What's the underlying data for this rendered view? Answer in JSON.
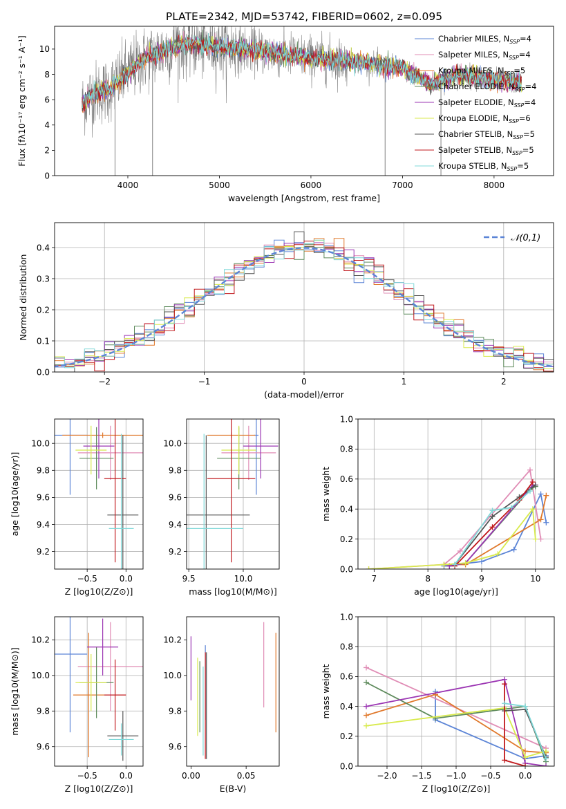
{
  "figure": {
    "title": "PLATE=2342, MJD=53742, FIBERID=0602, z=0.095"
  },
  "series_styles": [
    {
      "name": "Chabrier MILES",
      "nssp": "4",
      "color": "#5b84d6"
    },
    {
      "name": "Salpeter MILES",
      "nssp": "4",
      "color": "#e08cb5"
    },
    {
      "name": "Kroupa MILES",
      "nssp": "5",
      "color": "#e0782b"
    },
    {
      "name": "Chabrier ELODIE",
      "nssp": "4",
      "color": "#5d8a5b"
    },
    {
      "name": "Salpeter ELODIE",
      "nssp": "4",
      "color": "#9b35b3"
    },
    {
      "name": "Kroupa ELODIE",
      "nssp": "6",
      "color": "#d8ea4c"
    },
    {
      "name": "Chabrier STELIB",
      "nssp": "5",
      "color": "#555555"
    },
    {
      "name": "Salpeter STELIB",
      "nssp": "5",
      "color": "#c0181c"
    },
    {
      "name": "Kroupa STELIB",
      "nssp": "5",
      "color": "#7fd8d8"
    }
  ],
  "chart_data": [
    {
      "id": "spectrum",
      "type": "line",
      "xlabel": "wavelength [Angstrom, rest frame]",
      "ylabel": "Flux [fλ10⁻¹⁷ erg cm⁻² s⁻¹ A⁻¹]",
      "xlim": [
        3200,
        8650
      ],
      "ylim": [
        0,
        11.8
      ],
      "xticks": [
        4000,
        5000,
        6000,
        7000,
        8000
      ],
      "yticks": [
        0,
        2,
        4,
        6,
        8,
        10
      ],
      "grid": false,
      "legend": "top-right",
      "data_color": "#808080",
      "model_color": "#7fd8d8",
      "x_range": [
        3500,
        8300
      ],
      "continuum": [
        [
          3500,
          5.6
        ],
        [
          3600,
          6.4
        ],
        [
          3800,
          6.8
        ],
        [
          4000,
          8.2
        ],
        [
          4200,
          9.3
        ],
        [
          4600,
          10.4
        ],
        [
          5000,
          10.2
        ],
        [
          5500,
          9.8
        ],
        [
          6000,
          9.3
        ],
        [
          6500,
          9.0
        ],
        [
          7000,
          8.5
        ],
        [
          7300,
          7.2
        ],
        [
          7600,
          8.0
        ],
        [
          8000,
          7.6
        ],
        [
          8300,
          7.3
        ]
      ],
      "deep_lines": [
        [
          3860,
          0
        ],
        [
          4270,
          0
        ],
        [
          6810,
          0
        ],
        [
          7420,
          0
        ]
      ]
    },
    {
      "id": "residuals",
      "type": "histogram",
      "xlabel": "(data-model)/error",
      "ylabel": "Normed distribution",
      "xlim": [
        -2.5,
        2.5
      ],
      "ylim": [
        0,
        0.48
      ],
      "xticks": [
        -2,
        -1,
        0,
        1,
        2
      ],
      "yticks": [
        0.0,
        0.1,
        0.2,
        0.3,
        0.4
      ],
      "grid": true,
      "legend": "top-right",
      "reference": {
        "name": "𝒩(0,1)",
        "color": "#5b84d6",
        "mean": 0,
        "sigma": 1
      },
      "bin_width": 0.1
    },
    {
      "id": "age-vs-Z",
      "type": "errorbar",
      "xlabel": "Z [log10(Z/Z⊙)]",
      "ylabel": "age  [log10(age/yr)]",
      "xlim": [
        -0.92,
        0.22
      ],
      "ylim": [
        9.07,
        10.18
      ],
      "xticks": [
        -0.5,
        0.0
      ],
      "yticks": [
        9.2,
        9.4,
        9.6,
        9.8,
        10.0
      ],
      "grid": true,
      "points": [
        {
          "s": 0,
          "x": -0.72,
          "y": 10.06,
          "xerr": 0.22,
          "yerr": 0.44
        },
        {
          "s": 1,
          "x": -0.2,
          "y": 9.93,
          "xerr": 0.42,
          "yerr": 0.2
        },
        {
          "s": 2,
          "x": -0.3,
          "y": 10.06,
          "xerr": 0.52,
          "yerr": 0.02
        },
        {
          "s": 3,
          "x": -0.38,
          "y": 9.89,
          "xerr": 0.22,
          "yerr": 0.23
        },
        {
          "s": 4,
          "x": -0.35,
          "y": 9.98,
          "xerr": 0.2,
          "yerr": 0.24
        },
        {
          "s": 5,
          "x": -0.45,
          "y": 9.95,
          "xerr": 0.2,
          "yerr": 0.18
        },
        {
          "s": 6,
          "x": -0.04,
          "y": 9.47,
          "xerr": 0.2,
          "yerr": 0.59
        },
        {
          "s": 7,
          "x": -0.14,
          "y": 9.74,
          "xerr": 0.14,
          "yerr": 0.62
        },
        {
          "s": 8,
          "x": -0.06,
          "y": 9.37,
          "xerr": 0.16,
          "yerr": 0.7
        }
      ]
    },
    {
      "id": "age-vs-mass",
      "type": "errorbar",
      "xlabel": "mass [log10(M/M⊙)]",
      "ylabel": "",
      "xlim": [
        9.48,
        10.33
      ],
      "ylim": [
        9.07,
        10.18
      ],
      "xticks": [
        9.5,
        10.0
      ],
      "yticks": [
        9.2,
        9.4,
        9.6,
        9.8,
        10.0
      ],
      "grid": true,
      "points": [
        {
          "s": 0,
          "x": 10.12,
          "y": 10.06,
          "xerr": 0.02,
          "yerr": 0.44
        },
        {
          "s": 1,
          "x": 10.05,
          "y": 9.93,
          "xerr": 0.25,
          "yerr": 0.2
        },
        {
          "s": 2,
          "x": 9.89,
          "y": 10.06,
          "xerr": 0.22,
          "yerr": 0.02
        },
        {
          "s": 3,
          "x": 9.96,
          "y": 9.89,
          "xerr": 0.2,
          "yerr": 0.23
        },
        {
          "s": 4,
          "x": 10.16,
          "y": 9.98,
          "xerr": 0.16,
          "yerr": 0.24
        },
        {
          "s": 5,
          "x": 9.96,
          "y": 9.95,
          "xerr": 0.16,
          "yerr": 0.18
        },
        {
          "s": 6,
          "x": 9.66,
          "y": 9.47,
          "xerr": 0.4,
          "yerr": 0.59
        },
        {
          "s": 7,
          "x": 9.89,
          "y": 9.74,
          "xerr": 0.22,
          "yerr": 0.62
        },
        {
          "s": 8,
          "x": 9.64,
          "y": 9.37,
          "xerr": 0.36,
          "yerr": 0.7
        }
      ]
    },
    {
      "id": "massweight-vs-age",
      "type": "line",
      "xlabel": "age  [log10(age/yr)]",
      "ylabel": "mass weight",
      "xlim": [
        6.7,
        10.35
      ],
      "ylim": [
        0,
        1.0
      ],
      "xticks": [
        7,
        8,
        9,
        10
      ],
      "yticks": [
        0.0,
        0.2,
        0.4,
        0.6,
        0.8,
        1.0
      ],
      "grid": true,
      "series": [
        {
          "s": 0,
          "points": [
            [
              8.3,
              0.02
            ],
            [
              9.0,
              0.05
            ],
            [
              9.6,
              0.13
            ],
            [
              10.1,
              0.5
            ],
            [
              10.2,
              0.31
            ]
          ]
        },
        {
          "s": 1,
          "points": [
            [
              6.9,
              0.0
            ],
            [
              8.3,
              0.03
            ],
            [
              8.6,
              0.12
            ],
            [
              9.9,
              0.66
            ],
            [
              10.1,
              0.2
            ]
          ]
        },
        {
          "s": 2,
          "points": [
            [
              8.3,
              0.03
            ],
            [
              8.7,
              0.03
            ],
            [
              10.1,
              0.33
            ],
            [
              10.2,
              0.49
            ]
          ]
        },
        {
          "s": 3,
          "points": [
            [
              8.4,
              0.02
            ],
            [
              8.7,
              0.04
            ],
            [
              9.9,
              0.53
            ],
            [
              10.0,
              0.55
            ]
          ]
        },
        {
          "s": 4,
          "points": [
            [
              8.4,
              0.02
            ],
            [
              8.7,
              0.04
            ],
            [
              9.95,
              0.56
            ],
            [
              10.0,
              0.56
            ]
          ]
        },
        {
          "s": 5,
          "points": [
            [
              6.9,
              0.0
            ],
            [
              8.3,
              0.03
            ],
            [
              8.7,
              0.04
            ],
            [
              9.3,
              0.1
            ],
            [
              9.95,
              0.4
            ],
            [
              10.0,
              0.2
            ]
          ]
        },
        {
          "s": 6,
          "points": [
            [
              8.5,
              0.03
            ],
            [
              9.2,
              0.35
            ],
            [
              9.7,
              0.48
            ],
            [
              10.0,
              0.56
            ]
          ]
        },
        {
          "s": 7,
          "points": [
            [
              8.5,
              0.02
            ],
            [
              9.2,
              0.28
            ],
            [
              9.7,
              0.46
            ],
            [
              9.95,
              0.58
            ]
          ]
        },
        {
          "s": 8,
          "points": [
            [
              8.5,
              0.03
            ],
            [
              9.2,
              0.39
            ],
            [
              9.55,
              0.41
            ],
            [
              9.9,
              0.52
            ]
          ]
        }
      ]
    },
    {
      "id": "mass-vs-Z",
      "type": "errorbar",
      "xlabel": "Z [log10(Z/Z⊙)]",
      "ylabel": "mass [log10(M/M⊙)]",
      "xlim": [
        -0.92,
        0.22
      ],
      "ylim": [
        9.49,
        10.33
      ],
      "xticks": [
        -0.5,
        0.0
      ],
      "yticks": [
        9.6,
        9.8,
        10.0,
        10.2
      ],
      "grid": true,
      "points": [
        {
          "s": 0,
          "x": -0.72,
          "y": 10.12,
          "xerr": 0.22,
          "yerr": 0.44
        },
        {
          "s": 1,
          "x": -0.2,
          "y": 10.05,
          "xerr": 0.42,
          "yerr": 0.25
        },
        {
          "s": 2,
          "x": -0.48,
          "y": 9.89,
          "xerr": 0.2,
          "yerr": 0.35
        },
        {
          "s": 3,
          "x": -0.38,
          "y": 9.96,
          "xerr": 0.22,
          "yerr": 0.2
        },
        {
          "s": 4,
          "x": -0.3,
          "y": 10.16,
          "xerr": 0.2,
          "yerr": 0.16
        },
        {
          "s": 5,
          "x": -0.45,
          "y": 9.96,
          "xerr": 0.2,
          "yerr": 0.16
        },
        {
          "s": 6,
          "x": -0.04,
          "y": 9.66,
          "xerr": 0.2,
          "yerr": 0.14
        },
        {
          "s": 7,
          "x": -0.14,
          "y": 9.89,
          "xerr": 0.14,
          "yerr": 0.2
        },
        {
          "s": 8,
          "x": -0.06,
          "y": 9.64,
          "xerr": 0.16,
          "yerr": 0.09
        }
      ]
    },
    {
      "id": "mass-vs-ebv",
      "type": "errorbar",
      "xlabel": "E(B-V)",
      "ylabel": "",
      "xlim": [
        -0.004,
        0.08
      ],
      "ylim": [
        9.49,
        10.33
      ],
      "xticks": [
        0.0,
        0.05
      ],
      "yticks": [
        9.6,
        9.8,
        10.0,
        10.2
      ],
      "grid": false,
      "points": [
        {
          "s": 0,
          "x": 0.013,
          "y": 9.96,
          "xerr": 0,
          "yerr": 0.21
        },
        {
          "s": 1,
          "x": 0.066,
          "y": 10.06,
          "xerr": 0,
          "yerr": 0.24
        },
        {
          "s": 2,
          "x": 0.077,
          "y": 9.96,
          "xerr": 0,
          "yerr": 0.28
        },
        {
          "s": 3,
          "x": 0.008,
          "y": 9.88,
          "xerr": 0,
          "yerr": 0.2
        },
        {
          "s": 4,
          "x": 0.0,
          "y": 10.04,
          "xerr": 0,
          "yerr": 0.18
        },
        {
          "s": 5,
          "x": 0.006,
          "y": 9.88,
          "xerr": 0,
          "yerr": 0.22
        },
        {
          "s": 6,
          "x": 0.014,
          "y": 9.83,
          "xerr": 0,
          "yerr": 0.3
        },
        {
          "s": 7,
          "x": 0.013,
          "y": 9.83,
          "xerr": 0,
          "yerr": 0.3
        },
        {
          "s": 8,
          "x": 0.011,
          "y": 9.8,
          "xerr": 0,
          "yerr": 0.25
        }
      ]
    },
    {
      "id": "massweight-vs-Z",
      "type": "line",
      "xlabel": "Z [log10(Z/Z⊙)]",
      "ylabel": "mass weight",
      "xlim": [
        -2.42,
        0.42
      ],
      "ylim": [
        0,
        1.0
      ],
      "xticks": [
        -2.0,
        -1.5,
        -1.0,
        -0.5,
        0.0
      ],
      "yticks": [
        0.0,
        0.2,
        0.4,
        0.6,
        0.8,
        1.0
      ],
      "grid": true,
      "series": [
        {
          "s": 0,
          "points": [
            [
              -1.3,
              0.5
            ],
            [
              -1.3,
              0.31
            ],
            [
              0.0,
              0.05
            ],
            [
              0.3,
              0.07
            ]
          ]
        },
        {
          "s": 1,
          "points": [
            [
              -2.3,
              0.66
            ],
            [
              0.3,
              0.12
            ]
          ]
        },
        {
          "s": 2,
          "points": [
            [
              -2.3,
              0.34
            ],
            [
              -1.3,
              0.48
            ],
            [
              0.0,
              0.1
            ],
            [
              0.3,
              0.09
            ]
          ]
        },
        {
          "s": 3,
          "points": [
            [
              -2.3,
              0.56
            ],
            [
              -1.3,
              0.32
            ],
            [
              0.0,
              0.4
            ],
            [
              0.3,
              0.03
            ]
          ]
        },
        {
          "s": 4,
          "points": [
            [
              -2.3,
              0.4
            ],
            [
              -0.3,
              0.58
            ],
            [
              0.0,
              0.02
            ],
            [
              0.3,
              0.0
            ]
          ]
        },
        {
          "s": 5,
          "points": [
            [
              -2.3,
              0.27
            ],
            [
              -0.3,
              0.39
            ],
            [
              0.0,
              0.06
            ],
            [
              0.3,
              0.1
            ]
          ]
        },
        {
          "s": 6,
          "points": [
            [
              -0.3,
              0.37
            ],
            [
              0.0,
              0.38
            ],
            [
              0.3,
              0.06
            ]
          ]
        },
        {
          "s": 7,
          "points": [
            [
              -0.3,
              0.55
            ],
            [
              -0.3,
              0.04
            ],
            [
              0.0,
              0.0
            ]
          ]
        },
        {
          "s": 8,
          "points": [
            [
              -0.3,
              0.42
            ],
            [
              0.0,
              0.4
            ],
            [
              0.3,
              0.05
            ]
          ]
        }
      ]
    }
  ]
}
